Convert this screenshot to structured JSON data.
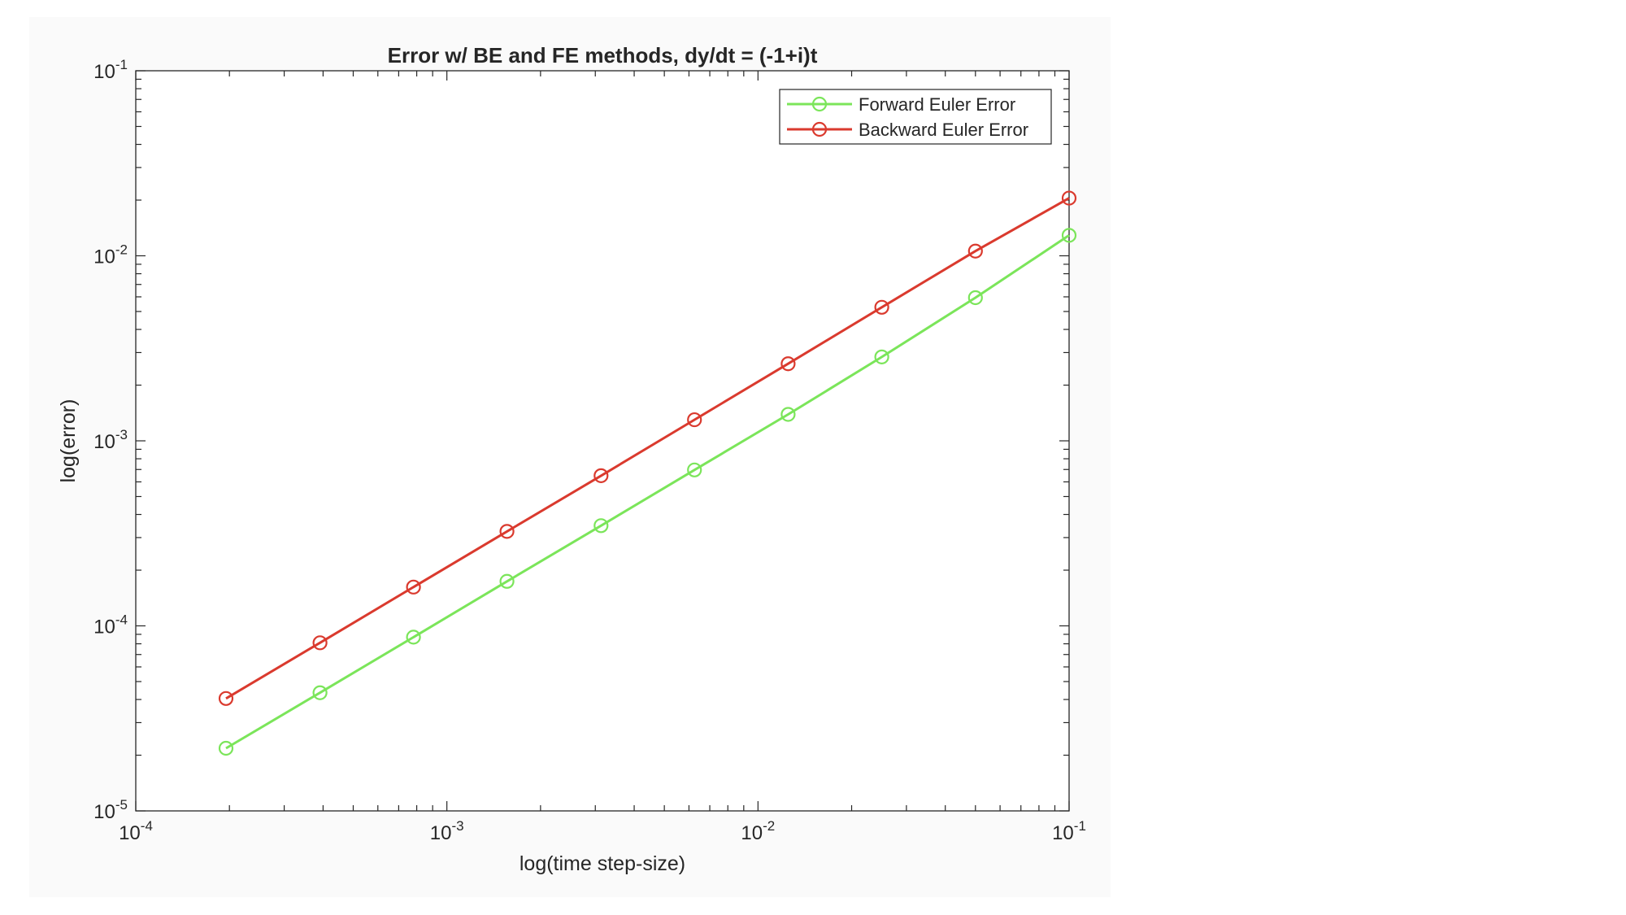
{
  "chart_data": {
    "type": "line",
    "title": "Error w/ BE and FE methods, dy/dt = (-1+i)t",
    "xlabel": "log(time step-size)",
    "ylabel": "log(error)",
    "xscale": "log",
    "yscale": "log",
    "xlim": [
      0.0001,
      0.1
    ],
    "ylim": [
      1e-05,
      0.1
    ],
    "grid": false,
    "legend_position": "top-right",
    "x_ticks": [
      {
        "base": "10",
        "exp": "-4",
        "value": 0.0001
      },
      {
        "base": "10",
        "exp": "-3",
        "value": 0.001
      },
      {
        "base": "10",
        "exp": "-2",
        "value": 0.01
      },
      {
        "base": "10",
        "exp": "-1",
        "value": 0.1
      }
    ],
    "y_ticks": [
      {
        "base": "10",
        "exp": "-5",
        "value": 1e-05
      },
      {
        "base": "10",
        "exp": "-4",
        "value": 0.0001
      },
      {
        "base": "10",
        "exp": "-3",
        "value": 0.001
      },
      {
        "base": "10",
        "exp": "-2",
        "value": 0.01
      },
      {
        "base": "10",
        "exp": "-1",
        "value": 0.1
      }
    ],
    "x": [
      0.000195,
      0.000391,
      0.000781,
      0.00156,
      0.00313,
      0.00625,
      0.0125,
      0.025,
      0.05,
      0.1
    ],
    "series": [
      {
        "name": "Forward Euler Error",
        "color": "#7be55a",
        "marker": "circle",
        "values": [
          2.18e-05,
          4.35e-05,
          8.69e-05,
          0.000174,
          0.000348,
          0.000696,
          0.00139,
          0.00284,
          0.00594,
          0.0129
        ]
      },
      {
        "name": "Backward Euler Error",
        "color": "#da3a2e",
        "marker": "circle",
        "values": [
          4.05e-05,
          8.1e-05,
          0.000162,
          0.000324,
          0.000648,
          0.0013,
          0.00261,
          0.00527,
          0.0106,
          0.0205
        ]
      }
    ]
  }
}
